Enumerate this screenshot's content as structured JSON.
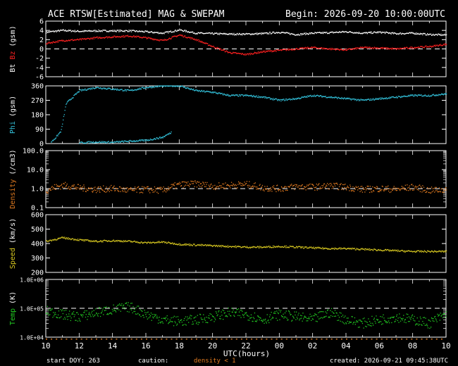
{
  "header": {
    "title": "ACE RTSW[Estimated] MAG & SWEPAM",
    "begin": "Begin: 2026-09-20 10:00:00UTC"
  },
  "footer": {
    "start_doy": "start DOY: 263",
    "caution": "caution:",
    "caution_note": "density < 1",
    "created": "created: 2026-09-21 09:45:38UTC",
    "xlabel": "UTC(hours)"
  },
  "colors": {
    "bt": "#ffffff",
    "bz": "#ff2020",
    "phi": "#33c3dd",
    "density": "#e07a20",
    "speed": "#d8c820",
    "temp": "#22cc22",
    "caution": "#e07a20"
  },
  "chart_data": {
    "type": "scatter",
    "x_axis": {
      "range_hours": [
        0,
        24
      ],
      "tick_labels": [
        "10",
        "12",
        "14",
        "16",
        "18",
        "20",
        "22",
        "00",
        "02",
        "04",
        "06",
        "08",
        "10"
      ]
    },
    "panels": [
      {
        "id": "mag",
        "ylabel_left": "Bt",
        "ylabel_right": "Bz",
        "unit": "(gsm)",
        "scale": "linear",
        "ylim": [
          -6,
          6
        ],
        "tick_labels": [
          "6",
          "4",
          "2",
          "0",
          "-2",
          "-4",
          "-6"
        ],
        "reference_line": 0,
        "series": [
          {
            "name": "Bt",
            "color": "#ffffff",
            "x": [
              0,
              1,
              2,
              3,
              4,
              5,
              6,
              7,
              8,
              9,
              10,
              11,
              12,
              13,
              14,
              15,
              16,
              17,
              18,
              19,
              20,
              21,
              22,
              23,
              24
            ],
            "y": [
              3.6,
              4.0,
              3.8,
              3.9,
              3.9,
              3.9,
              3.7,
              3.4,
              4.1,
              3.4,
              3.3,
              3.2,
              3.2,
              3.3,
              3.6,
              3.1,
              3.4,
              3.5,
              3.7,
              3.4,
              3.6,
              3.3,
              3.4,
              3.1,
              3.0
            ]
          },
          {
            "name": "Bz",
            "color": "#ff2020",
            "x": [
              0,
              1,
              2,
              3,
              4,
              5,
              6,
              7,
              8,
              9,
              10,
              11,
              12,
              13,
              14,
              15,
              16,
              17,
              18,
              19,
              20,
              21,
              22,
              23,
              24
            ],
            "y": [
              1.2,
              1.8,
              2.0,
              2.4,
              2.6,
              2.8,
              2.4,
              1.8,
              3.0,
              2.0,
              0.5,
              -0.8,
              -1.2,
              -0.6,
              -0.3,
              0.0,
              0.3,
              0.0,
              -0.2,
              0.3,
              0.2,
              0.0,
              0.3,
              0.5,
              1.0
            ]
          }
        ]
      },
      {
        "id": "phi",
        "ylabel": "Phi",
        "unit": "(gsm)",
        "scale": "linear",
        "ylim": [
          0,
          360
        ],
        "tick_labels": [
          "360",
          "270",
          "180",
          "90",
          "0"
        ],
        "series": [
          {
            "name": "Phi",
            "color": "#33c3dd",
            "x": [
              0.3,
              0.6,
              0.9,
              1.2,
              2,
              3,
              4,
              5,
              6,
              7,
              8,
              9,
              10,
              11,
              12,
              13,
              14,
              15,
              16,
              17,
              18,
              19,
              20,
              21,
              22,
              23,
              24
            ],
            "y": [
              10,
              40,
              80,
              250,
              330,
              350,
              340,
              330,
              350,
              360,
              360,
              330,
              320,
              300,
              300,
              290,
              270,
              280,
              300,
              290,
              280,
              270,
              280,
              290,
              300,
              300,
              310
            ]
          },
          {
            "name": "Phi-wrap",
            "color": "#33c3dd",
            "x": [
              2,
              3,
              4,
              5,
              6,
              7,
              7.5
            ],
            "y": [
              5,
              10,
              8,
              15,
              20,
              40,
              70
            ]
          }
        ]
      },
      {
        "id": "density",
        "ylabel": "Density",
        "unit": "(/cm3)",
        "scale": "log",
        "ylim": [
          0.1,
          100
        ],
        "tick_labels": [
          "100.0",
          "10.0",
          "1.0",
          "0.1"
        ],
        "reference_line": 1.0,
        "series": [
          {
            "name": "Density",
            "color": "#e07a20",
            "x": [
              0,
              1,
              2,
              3,
              4,
              5,
              6,
              7,
              8,
              9,
              10,
              11,
              12,
              13,
              14,
              15,
              16,
              17,
              18,
              19,
              20,
              21,
              22,
              23,
              24
            ],
            "y": [
              0.8,
              1.5,
              1.1,
              0.9,
              1.0,
              0.8,
              0.9,
              0.8,
              1.6,
              1.8,
              1.3,
              1.5,
              1.7,
              1.1,
              1.0,
              1.3,
              1.2,
              1.4,
              1.2,
              0.9,
              1.0,
              0.9,
              1.2,
              0.8,
              0.9
            ]
          }
        ]
      },
      {
        "id": "speed",
        "ylabel": "Speed",
        "unit": "(km/s)",
        "scale": "linear",
        "ylim": [
          200,
          600
        ],
        "tick_labels": [
          "600",
          "500",
          "400",
          "300",
          "200"
        ],
        "series": [
          {
            "name": "Speed",
            "color": "#d8c820",
            "x": [
              0,
              1,
              2,
              3,
              4,
              5,
              6,
              7,
              8,
              9,
              10,
              11,
              12,
              13,
              14,
              15,
              16,
              17,
              18,
              19,
              20,
              21,
              22,
              23,
              24
            ],
            "y": [
              415,
              440,
              425,
              415,
              420,
              415,
              405,
              410,
              395,
              390,
              385,
              380,
              375,
              375,
              380,
              375,
              370,
              365,
              365,
              360,
              355,
              350,
              345,
              345,
              345
            ]
          }
        ]
      },
      {
        "id": "temp",
        "ylabel": "Temp",
        "unit": "(K)",
        "scale": "log",
        "ylim": [
          10000,
          1000000
        ],
        "tick_labels": [
          "1.0E+06",
          "1.0E+05",
          "1.0E+04"
        ],
        "reference_line": 100000,
        "series": [
          {
            "name": "Temp",
            "color": "#22cc22",
            "x": [
              0,
              1,
              2,
              3,
              4,
              5,
              6,
              7,
              8,
              9,
              10,
              11,
              12,
              13,
              14,
              15,
              16,
              17,
              18,
              19,
              20,
              21,
              22,
              23,
              24
            ],
            "y": [
              80000,
              60000,
              50000,
              70000,
              90000,
              110000,
              60000,
              40000,
              35000,
              40000,
              50000,
              70000,
              60000,
              40000,
              60000,
              50000,
              40000,
              70000,
              40000,
              30000,
              40000,
              50000,
              40000,
              30000,
              60000
            ]
          }
        ]
      }
    ]
  }
}
